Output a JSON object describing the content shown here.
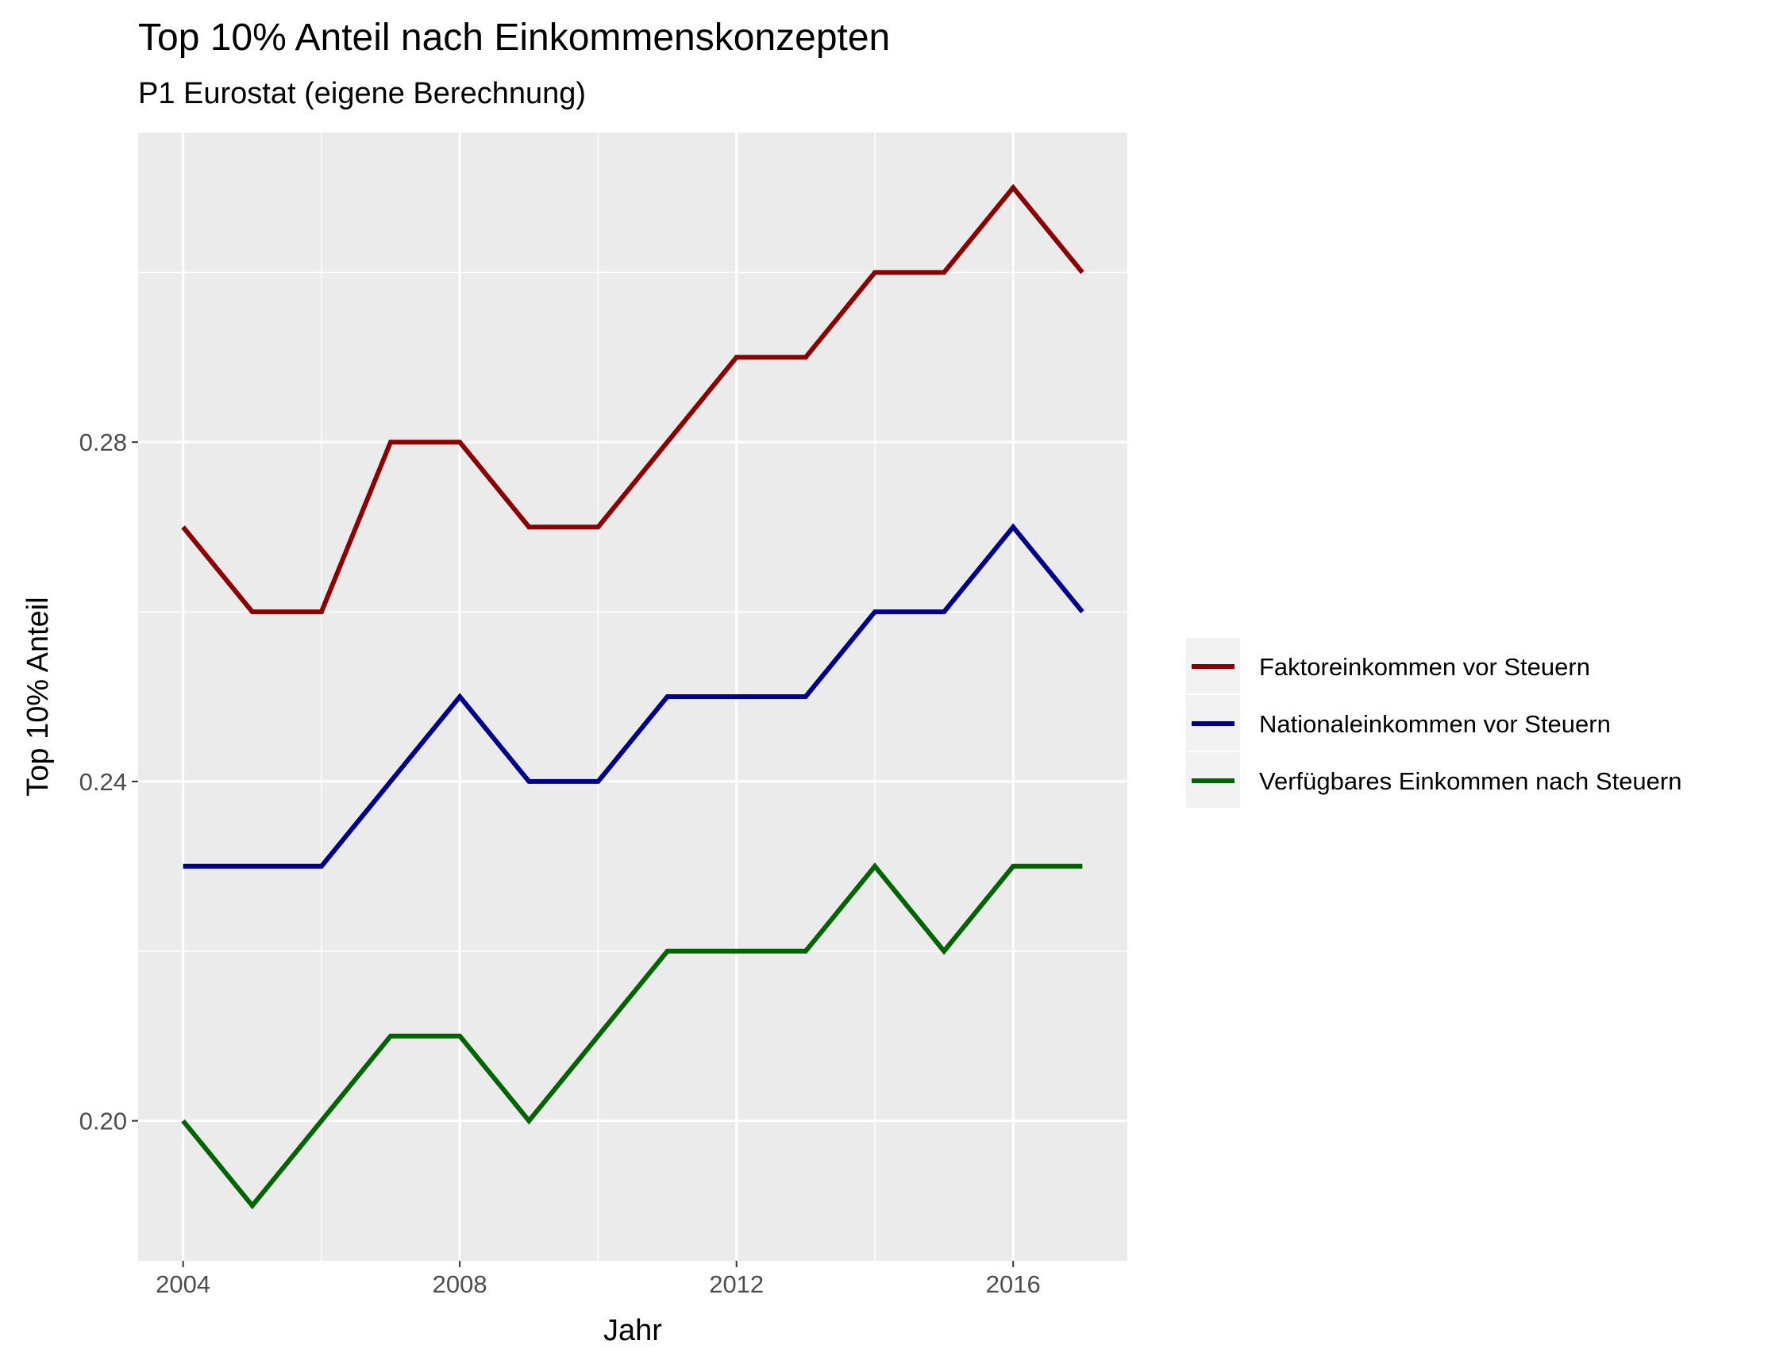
{
  "chart_data": {
    "type": "line",
    "title": "Top 10% Anteil nach Einkommenskonzepten",
    "subtitle": "P1 Eurostat (eigene Berechnung)",
    "xlabel": "Jahr",
    "ylabel": "Top 10% Anteil",
    "x": [
      2004,
      2005,
      2006,
      2007,
      2008,
      2009,
      2010,
      2011,
      2012,
      2013,
      2014,
      2015,
      2016,
      2017
    ],
    "xlim": [
      2003.35,
      2017.65
    ],
    "ylim": [
      0.1835,
      0.3165
    ],
    "x_ticks": [
      2004,
      2008,
      2012,
      2016
    ],
    "x_tick_labels": [
      "2004",
      "2008",
      "2012",
      "2016"
    ],
    "x_minor": [
      2006,
      2010,
      2014
    ],
    "y_ticks": [
      0.2,
      0.24,
      0.28
    ],
    "y_tick_labels": [
      "0.20",
      "0.24",
      "0.28"
    ],
    "y_minor": [
      0.22,
      0.26,
      0.3
    ],
    "grid": true,
    "legend_position": "right",
    "series": [
      {
        "name": "Faktoreinkommen vor Steuern",
        "color": "#8b0000",
        "values": [
          0.27,
          0.26,
          0.26,
          0.28,
          0.28,
          0.27,
          0.27,
          0.28,
          0.29,
          0.29,
          0.3,
          0.3,
          0.31,
          0.3
        ]
      },
      {
        "name": "Nationaleinkommen vor Steuern",
        "color": "#00008b",
        "values": [
          0.23,
          0.23,
          0.23,
          0.24,
          0.25,
          0.24,
          0.24,
          0.25,
          0.25,
          0.25,
          0.26,
          0.26,
          0.27,
          0.26
        ]
      },
      {
        "name": "Verfügbares Einkommen nach Steuern",
        "color": "#006400",
        "values": [
          0.2,
          0.19,
          0.2,
          0.21,
          0.21,
          0.2,
          0.21,
          0.22,
          0.22,
          0.22,
          0.23,
          0.22,
          0.23,
          0.23
        ]
      }
    ]
  }
}
